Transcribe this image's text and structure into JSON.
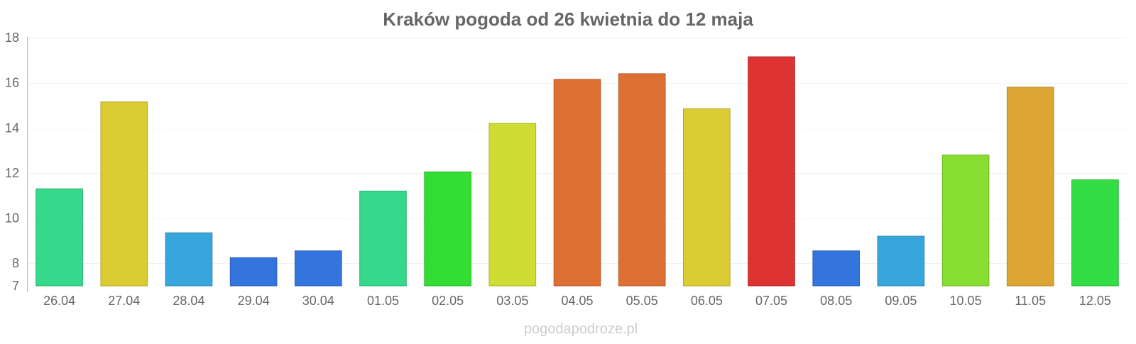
{
  "chart_data": {
    "type": "bar",
    "title": "Kraków pogoda od 26 kwietnia do 12 maja",
    "xlabel": "",
    "ylabel": "",
    "categories": [
      "26.04",
      "27.04",
      "28.04",
      "29.04",
      "30.04",
      "01.05",
      "02.05",
      "03.05",
      "04.05",
      "05.05",
      "06.05",
      "07.05",
      "08.05",
      "09.05",
      "10.05",
      "11.05",
      "12.05"
    ],
    "values": [
      11.3,
      15.15,
      9.35,
      8.25,
      8.55,
      11.2,
      12.05,
      14.2,
      16.15,
      16.4,
      14.85,
      17.15,
      8.55,
      9.2,
      12.8,
      15.8,
      11.7
    ],
    "colors": [
      "#36d98b",
      "#dbcc33",
      "#36a6dc",
      "#3474dd",
      "#3474dd",
      "#36d98b",
      "#33dd33",
      "#cfdd33",
      "#de6f33",
      "#de6f33",
      "#dbcc33",
      "#dd3333",
      "#3474dd",
      "#36a6dc",
      "#88dd33",
      "#dda633",
      "#33dd44"
    ],
    "ylim": [
      7,
      18
    ],
    "yticks": [
      7,
      8,
      10,
      12,
      14,
      16,
      18
    ],
    "grid": true,
    "legend": "none"
  },
  "watermark": "pogodapodroze.pl"
}
